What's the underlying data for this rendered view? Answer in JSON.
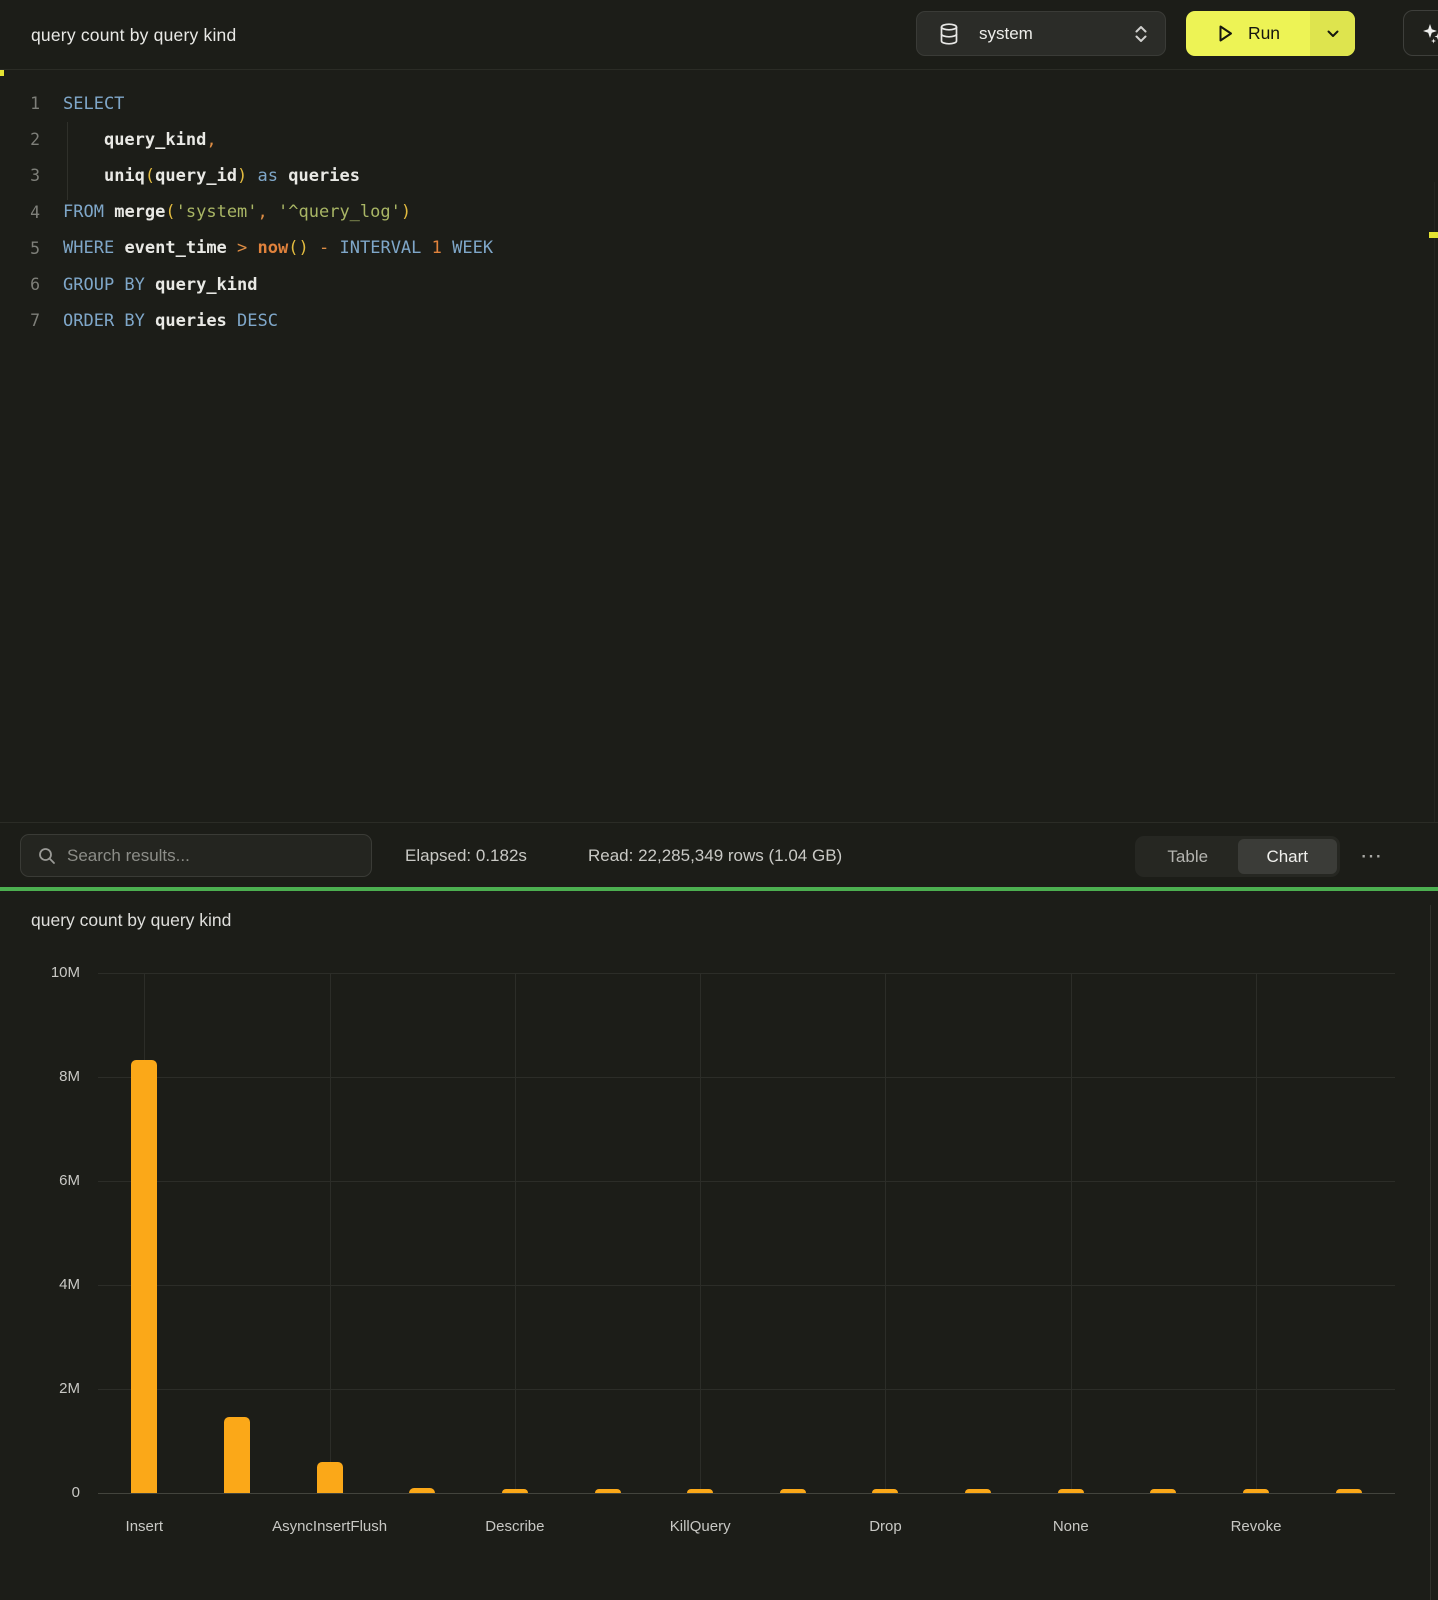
{
  "topbar": {
    "title": "query count by query kind",
    "database_selector": {
      "value": "system"
    },
    "run_button": {
      "label": "Run"
    }
  },
  "editor": {
    "lines": [
      {
        "num": "1",
        "tokens": [
          {
            "t": "SELECT",
            "c": "kw"
          }
        ]
      },
      {
        "num": "2",
        "tokens": [
          {
            "t": "    ",
            "c": "ws"
          },
          {
            "t": "query_kind",
            "c": "id"
          },
          {
            "t": ",",
            "c": "op"
          }
        ]
      },
      {
        "num": "3",
        "tokens": [
          {
            "t": "    ",
            "c": "ws"
          },
          {
            "t": "uniq",
            "c": "id"
          },
          {
            "t": "(",
            "c": "par"
          },
          {
            "t": "query_id",
            "c": "id"
          },
          {
            "t": ")",
            "c": "par"
          },
          {
            "t": " ",
            "c": "ws"
          },
          {
            "t": "as",
            "c": "kw"
          },
          {
            "t": " ",
            "c": "ws"
          },
          {
            "t": "queries",
            "c": "id"
          }
        ]
      },
      {
        "num": "4",
        "tokens": [
          {
            "t": "FROM",
            "c": "kw"
          },
          {
            "t": " ",
            "c": "ws"
          },
          {
            "t": "merge",
            "c": "id"
          },
          {
            "t": "(",
            "c": "par"
          },
          {
            "t": "'system'",
            "c": "str"
          },
          {
            "t": ",",
            "c": "op"
          },
          {
            "t": " ",
            "c": "ws"
          },
          {
            "t": "'^query_log'",
            "c": "str"
          },
          {
            "t": ")",
            "c": "par"
          }
        ]
      },
      {
        "num": "5",
        "tokens": [
          {
            "t": "WHERE",
            "c": "kw"
          },
          {
            "t": " ",
            "c": "ws"
          },
          {
            "t": "event_time",
            "c": "id"
          },
          {
            "t": " ",
            "c": "ws"
          },
          {
            "t": ">",
            "c": "op"
          },
          {
            "t": " ",
            "c": "ws"
          },
          {
            "t": "now",
            "c": "fn"
          },
          {
            "t": "(",
            "c": "par"
          },
          {
            "t": ")",
            "c": "par"
          },
          {
            "t": " ",
            "c": "ws"
          },
          {
            "t": "-",
            "c": "op"
          },
          {
            "t": " ",
            "c": "ws"
          },
          {
            "t": "INTERVAL",
            "c": "kw"
          },
          {
            "t": " ",
            "c": "ws"
          },
          {
            "t": "1",
            "c": "num"
          },
          {
            "t": " ",
            "c": "ws"
          },
          {
            "t": "WEEK",
            "c": "kw"
          }
        ]
      },
      {
        "num": "6",
        "tokens": [
          {
            "t": "GROUP BY",
            "c": "kw"
          },
          {
            "t": " ",
            "c": "ws"
          },
          {
            "t": "query_kind",
            "c": "id"
          }
        ]
      },
      {
        "num": "7",
        "tokens": [
          {
            "t": "ORDER BY",
            "c": "kw"
          },
          {
            "t": " ",
            "c": "ws"
          },
          {
            "t": "queries",
            "c": "id"
          },
          {
            "t": " ",
            "c": "ws"
          },
          {
            "t": "DESC",
            "c": "kw"
          }
        ]
      }
    ]
  },
  "results_toolbar": {
    "search_placeholder": "Search results...",
    "elapsed": "Elapsed: 0.182s",
    "read": "Read: 22,285,349 rows (1.04 GB)",
    "view_toggle": {
      "table_label": "Table",
      "chart_label": "Chart",
      "selected": "Chart"
    },
    "more_label": "⋯"
  },
  "chart_data": {
    "type": "bar",
    "title": "query count by query kind",
    "bar_color": "#fba818",
    "categories": [
      "Insert",
      "",
      "AsyncInsertFlush",
      "",
      "Describe",
      "",
      "KillQuery",
      "",
      "Drop",
      "",
      "None",
      "",
      "Revoke",
      ""
    ],
    "values": [
      8330000,
      1460000,
      600000,
      90000,
      80000,
      75000,
      70000,
      70000,
      65000,
      65000,
      60000,
      60000,
      55000,
      55000
    ],
    "xlabel": "",
    "ylabel": "",
    "ylim": [
      0,
      10000000
    ],
    "yticks": {
      "labels": [
        "10M",
        "8M",
        "6M",
        "4M",
        "2M",
        "0"
      ],
      "values": [
        10000000,
        8000000,
        6000000,
        4000000,
        2000000,
        0
      ]
    },
    "grid": true,
    "legend": false
  }
}
